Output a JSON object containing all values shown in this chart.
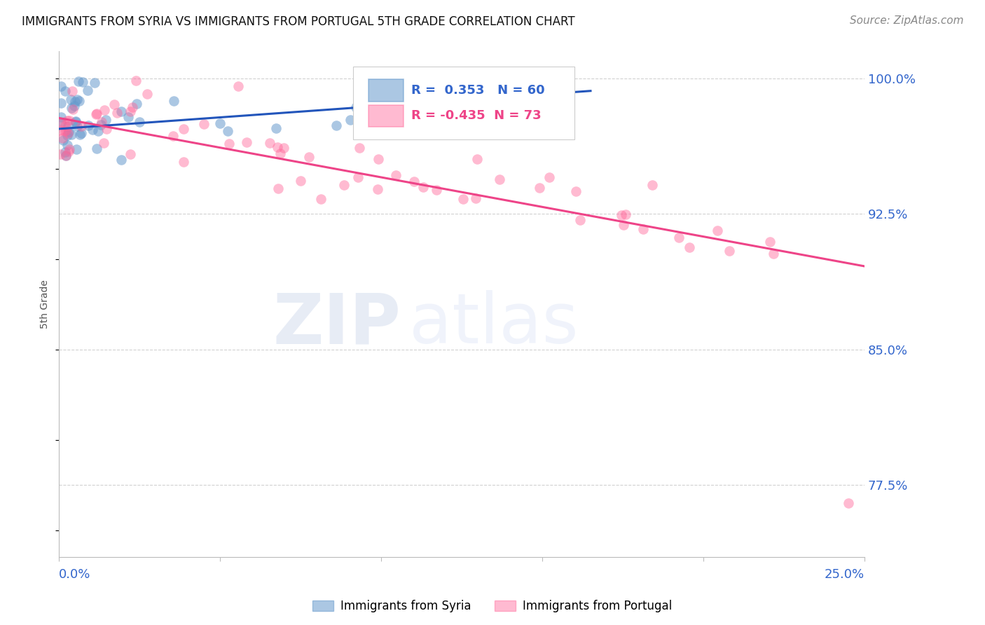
{
  "title": "IMMIGRANTS FROM SYRIA VS IMMIGRANTS FROM PORTUGAL 5TH GRADE CORRELATION CHART",
  "source": "Source: ZipAtlas.com",
  "ylabel": "5th Grade",
  "ytick_labels": [
    "100.0%",
    "92.5%",
    "85.0%",
    "77.5%"
  ],
  "ytick_vals": [
    1.0,
    0.925,
    0.85,
    0.775
  ],
  "xlim": [
    0.0,
    0.25
  ],
  "ylim": [
    0.735,
    1.015
  ],
  "syria_color": "#6699CC",
  "portugal_color": "#FF6699",
  "syria_R": 0.353,
  "syria_N": 60,
  "portugal_R": -0.435,
  "portugal_N": 73,
  "watermark_zip": "ZIP",
  "watermark_atlas": "atlas",
  "grid_color": "#CCCCCC",
  "title_fontsize": 12,
  "source_fontsize": 11,
  "tick_label_fontsize": 13,
  "legend_fontsize": 12,
  "ylabel_fontsize": 10,
  "blue_color": "#3366CC",
  "pink_color": "#EE4488",
  "legend_r_color_blue": "#3366CC",
  "legend_r_color_pink": "#EE4488"
}
